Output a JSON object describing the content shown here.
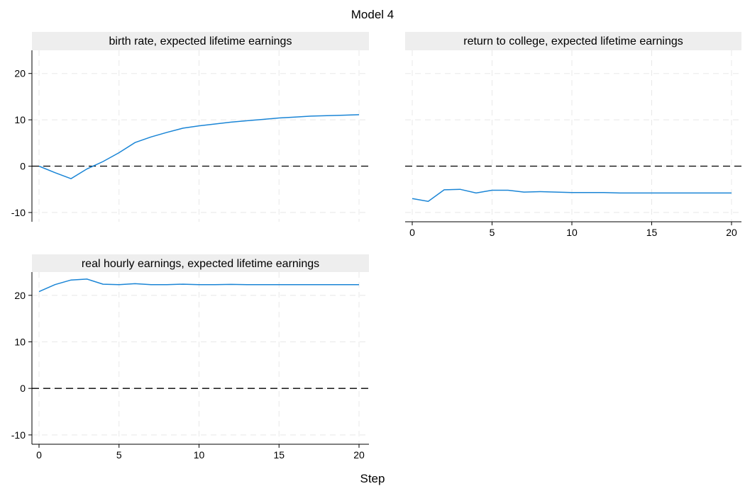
{
  "figure": {
    "title": "Model 4",
    "xlabel": "Step"
  },
  "colors": {
    "series": "#1a85d6",
    "zero_line": "#000000",
    "axis": "#000000",
    "grid": "#e8e8e8",
    "header_bg": "#eeeeee"
  },
  "chart_data": [
    {
      "type": "line",
      "title": "birth rate, expected lifetime earnings",
      "xlim": [
        0,
        20
      ],
      "ylim": [
        -12,
        25
      ],
      "yticks": [
        "-10",
        "0",
        "10",
        "20"
      ],
      "xticks": [],
      "show_y_axis": true,
      "show_x_labels": false,
      "zero_line": true,
      "grid": true,
      "x": [
        0,
        1,
        2,
        3,
        4,
        5,
        6,
        7,
        8,
        9,
        10,
        11,
        12,
        13,
        14,
        15,
        16,
        17,
        18,
        19,
        20
      ],
      "series": [
        {
          "values": [
            0,
            -1.4,
            -2.7,
            -0.6,
            1.0,
            2.9,
            5.1,
            6.3,
            7.3,
            8.2,
            8.7,
            9.1,
            9.5,
            9.8,
            10.1,
            10.4,
            10.6,
            10.8,
            10.9,
            11.0,
            11.1
          ]
        }
      ]
    },
    {
      "type": "line",
      "title": "return to college, expected lifetime earnings",
      "xlim": [
        0,
        20
      ],
      "ylim": [
        -12,
        25
      ],
      "yticks": [],
      "xticks": [
        "0",
        "5",
        "10",
        "15",
        "20"
      ],
      "show_y_axis": false,
      "show_x_labels": true,
      "zero_line": true,
      "grid": true,
      "x": [
        0,
        1,
        2,
        3,
        4,
        5,
        6,
        7,
        8,
        9,
        10,
        11,
        12,
        13,
        14,
        15,
        16,
        17,
        18,
        19,
        20
      ],
      "series": [
        {
          "values": [
            -7.0,
            -7.6,
            -5.1,
            -5.0,
            -5.8,
            -5.2,
            -5.2,
            -5.6,
            -5.5,
            -5.6,
            -5.7,
            -5.7,
            -5.7,
            -5.8,
            -5.8,
            -5.8,
            -5.8,
            -5.8,
            -5.8,
            -5.8,
            -5.8
          ]
        }
      ]
    },
    {
      "type": "line",
      "title": "real hourly earnings, expected lifetime earnings",
      "xlim": [
        0,
        20
      ],
      "ylim": [
        -12,
        25
      ],
      "yticks": [
        "-10",
        "0",
        "10",
        "20"
      ],
      "xticks": [
        "0",
        "5",
        "10",
        "15",
        "20"
      ],
      "show_y_axis": true,
      "show_x_labels": true,
      "zero_line": true,
      "grid": true,
      "x": [
        0,
        1,
        2,
        3,
        4,
        5,
        6,
        7,
        8,
        9,
        10,
        11,
        12,
        13,
        14,
        15,
        16,
        17,
        18,
        19,
        20
      ],
      "series": [
        {
          "values": [
            20.8,
            22.3,
            23.3,
            23.5,
            22.4,
            22.3,
            22.5,
            22.3,
            22.3,
            22.4,
            22.3,
            22.3,
            22.35,
            22.3,
            22.3,
            22.3,
            22.3,
            22.3,
            22.3,
            22.3,
            22.3
          ]
        }
      ]
    }
  ]
}
